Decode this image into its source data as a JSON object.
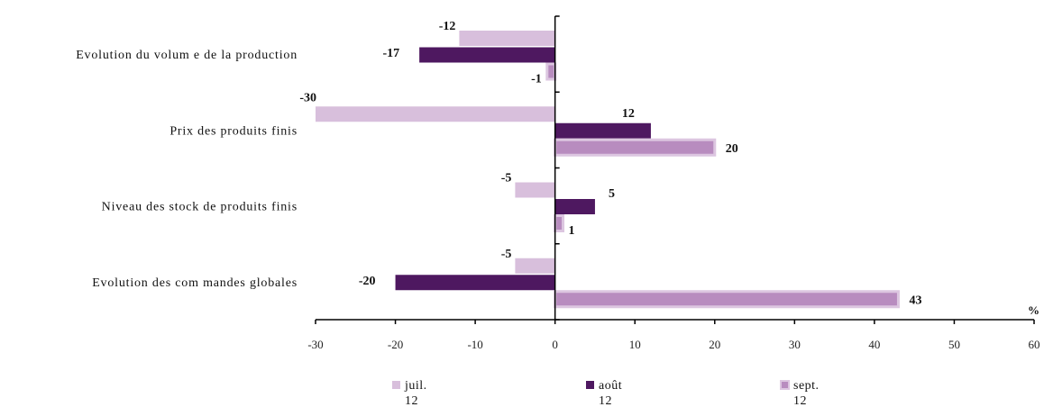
{
  "chart_data": {
    "type": "bar",
    "orientation": "horizontal",
    "categories": [
      "Evolution du volum e de la production",
      "Prix des produits finis",
      "Niveau des stock de produits finis",
      "Evolution des com mandes globales"
    ],
    "series": [
      {
        "name": "juil.",
        "name_line2": "12",
        "color": "#d8bfdc",
        "values": [
          -12,
          -30,
          -5,
          -5
        ]
      },
      {
        "name": "août",
        "name_line2": "12",
        "color": "#4e1860",
        "values": [
          -17,
          12,
          5,
          -20
        ]
      },
      {
        "name": "sept.",
        "name_line2": "12",
        "color": "#b88cbf",
        "values": [
          -1,
          20,
          1,
          43
        ]
      }
    ],
    "xlim": [
      -30,
      60
    ],
    "x_ticks": [
      "-30",
      "-20",
      "-10",
      "0",
      "10",
      "20",
      "30",
      "40",
      "50",
      "60"
    ],
    "xlabel": "%",
    "data_labels": [
      [
        "-12",
        "-30",
        "-5",
        "-5"
      ],
      [
        "-17",
        "12",
        "5",
        "-20"
      ],
      [
        "-1",
        "20",
        "1",
        "43"
      ]
    ],
    "grid": false,
    "legend": "bottom"
  }
}
